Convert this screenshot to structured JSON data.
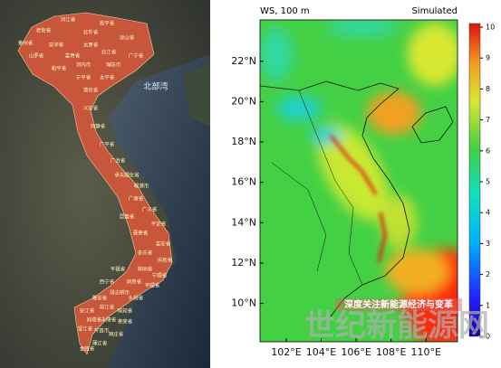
{
  "map": {
    "sea_label": "北部湾",
    "provinces": [
      "河江省",
      "高平省",
      "老街省",
      "莱州省",
      "北件省",
      "谅山省",
      "安沛省",
      "太原省",
      "山罗省",
      "富寿省",
      "北江省",
      "广宁省",
      "和平省",
      "河内市",
      "海防市",
      "宁平省",
      "太平省",
      "清化省",
      "义安省",
      "河静省",
      "广平省",
      "广治省",
      "承天顺化省",
      "岘港市",
      "广南省",
      "广义省",
      "昆嵩省",
      "平定省",
      "嘉莱省",
      "富安省",
      "多乐省",
      "庆和省",
      "林同省",
      "宁顺省",
      "平福省",
      "同奈省",
      "平顺省",
      "西宁省",
      "胡志明市",
      "头顿省",
      "隆安省",
      "前江省",
      "槟知省",
      "安江省",
      "同塔省",
      "永隆省",
      "茶荣省",
      "坚江省",
      "芹苴市",
      "朔庄省",
      "薄辽省",
      "金瓯省"
    ]
  },
  "chart_data": {
    "type": "heatmap",
    "title": "WS, 100 m",
    "subtitle": "Simulated",
    "xlim": [
      100.5,
      111.8
    ],
    "xticks": [
      {
        "value": 102,
        "label": "102°E"
      },
      {
        "value": 104,
        "label": "104°E"
      },
      {
        "value": 106,
        "label": "106°E"
      },
      {
        "value": 108,
        "label": "108°E"
      },
      {
        "value": 110,
        "label": "110°E"
      }
    ],
    "ylim": [
      8.1,
      24.05
    ],
    "yticks": [
      {
        "value": 10,
        "label": "10°N"
      },
      {
        "value": 12,
        "label": "12°N"
      },
      {
        "value": 14,
        "label": "14°N"
      },
      {
        "value": 16,
        "label": "16°N"
      },
      {
        "value": 18,
        "label": "18°N"
      },
      {
        "value": 20,
        "label": "20°N"
      },
      {
        "value": 22,
        "label": "22°N"
      }
    ],
    "colorbar_lim": [
      0,
      10
    ],
    "colorbar_ticks": [
      0,
      1,
      2,
      3,
      4,
      5,
      6,
      7,
      8,
      9,
      10
    ]
  },
  "watermarks": [
    "深度关注新能源经济与变革",
    "世纪新能源网"
  ]
}
